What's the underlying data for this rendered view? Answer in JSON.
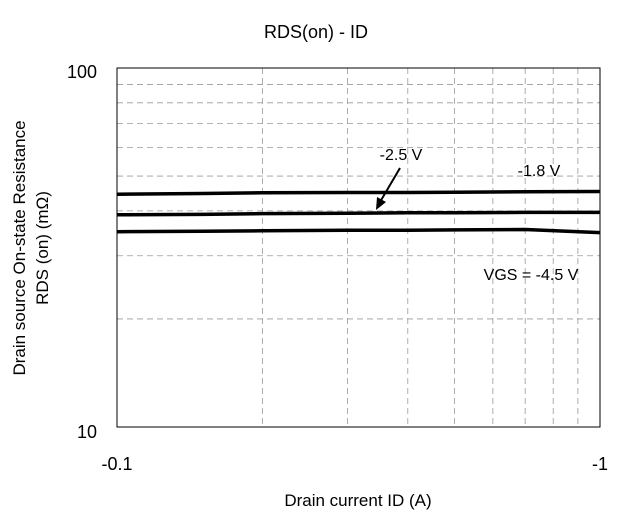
{
  "chart_data": {
    "type": "line",
    "title": "RDS(on) - ID",
    "xlabel": "Drain current ID (A)",
    "ylabel_line1": "Drain source On-state Resistance",
    "ylabel_line2": "RDS (on) (mΩ)",
    "x_scale": "log",
    "y_scale": "log",
    "xlim": [
      0.1,
      1
    ],
    "ylim": [
      10,
      100
    ],
    "x_tick_labels": [
      "-0.1",
      "-1"
    ],
    "y_tick_labels": [
      "10",
      "100"
    ],
    "grid": true,
    "series": [
      {
        "name": "-1.8 V",
        "x": [
          0.1,
          0.15,
          0.2,
          0.3,
          0.4,
          0.5,
          0.7,
          1.0
        ],
        "values": [
          44.5,
          44.7,
          44.9,
          45.0,
          45.0,
          45.1,
          45.2,
          45.3
        ]
      },
      {
        "name": "-2.5 V",
        "x": [
          0.1,
          0.15,
          0.2,
          0.3,
          0.4,
          0.5,
          0.7,
          1.0
        ],
        "values": [
          39.0,
          39.1,
          39.3,
          39.4,
          39.5,
          39.5,
          39.6,
          39.6
        ]
      },
      {
        "name": "VGS = -4.5 V",
        "x": [
          0.1,
          0.15,
          0.2,
          0.3,
          0.4,
          0.5,
          0.7,
          1.0
        ],
        "values": [
          35.0,
          35.1,
          35.2,
          35.3,
          35.3,
          35.4,
          35.5,
          34.8
        ]
      }
    ],
    "annotations": [
      "-2.5 V",
      "-1.8 V",
      "VGS = -4.5 V"
    ]
  }
}
